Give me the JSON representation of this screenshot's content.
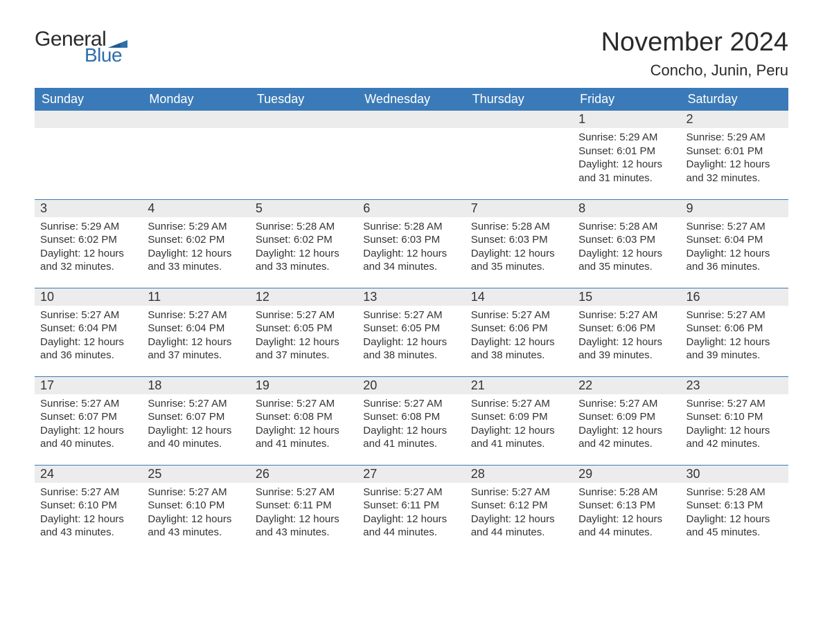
{
  "logo": {
    "general": "General",
    "blue": "Blue"
  },
  "title": "November 2024",
  "location": "Concho, Junin, Peru",
  "colors": {
    "header_bg": "#3b7ab8",
    "header_text": "#ffffff",
    "row_border": "#3b7ab8",
    "daynum_bg": "#ececec",
    "body_text": "#333333",
    "page_bg": "#ffffff",
    "logo_blue": "#2f6faa"
  },
  "typography": {
    "title_size_pt": 28,
    "location_size_pt": 16,
    "header_size_pt": 13,
    "daynum_size_pt": 13,
    "body_size_pt": 11,
    "font_family": "Arial"
  },
  "weekdays": [
    "Sunday",
    "Monday",
    "Tuesday",
    "Wednesday",
    "Thursday",
    "Friday",
    "Saturday"
  ],
  "weeks": [
    [
      null,
      null,
      null,
      null,
      null,
      {
        "n": "1",
        "sunrise": "Sunrise: 5:29 AM",
        "sunset": "Sunset: 6:01 PM",
        "day1": "Daylight: 12 hours",
        "day2": "and 31 minutes."
      },
      {
        "n": "2",
        "sunrise": "Sunrise: 5:29 AM",
        "sunset": "Sunset: 6:01 PM",
        "day1": "Daylight: 12 hours",
        "day2": "and 32 minutes."
      }
    ],
    [
      {
        "n": "3",
        "sunrise": "Sunrise: 5:29 AM",
        "sunset": "Sunset: 6:02 PM",
        "day1": "Daylight: 12 hours",
        "day2": "and 32 minutes."
      },
      {
        "n": "4",
        "sunrise": "Sunrise: 5:29 AM",
        "sunset": "Sunset: 6:02 PM",
        "day1": "Daylight: 12 hours",
        "day2": "and 33 minutes."
      },
      {
        "n": "5",
        "sunrise": "Sunrise: 5:28 AM",
        "sunset": "Sunset: 6:02 PM",
        "day1": "Daylight: 12 hours",
        "day2": "and 33 minutes."
      },
      {
        "n": "6",
        "sunrise": "Sunrise: 5:28 AM",
        "sunset": "Sunset: 6:03 PM",
        "day1": "Daylight: 12 hours",
        "day2": "and 34 minutes."
      },
      {
        "n": "7",
        "sunrise": "Sunrise: 5:28 AM",
        "sunset": "Sunset: 6:03 PM",
        "day1": "Daylight: 12 hours",
        "day2": "and 35 minutes."
      },
      {
        "n": "8",
        "sunrise": "Sunrise: 5:28 AM",
        "sunset": "Sunset: 6:03 PM",
        "day1": "Daylight: 12 hours",
        "day2": "and 35 minutes."
      },
      {
        "n": "9",
        "sunrise": "Sunrise: 5:27 AM",
        "sunset": "Sunset: 6:04 PM",
        "day1": "Daylight: 12 hours",
        "day2": "and 36 minutes."
      }
    ],
    [
      {
        "n": "10",
        "sunrise": "Sunrise: 5:27 AM",
        "sunset": "Sunset: 6:04 PM",
        "day1": "Daylight: 12 hours",
        "day2": "and 36 minutes."
      },
      {
        "n": "11",
        "sunrise": "Sunrise: 5:27 AM",
        "sunset": "Sunset: 6:04 PM",
        "day1": "Daylight: 12 hours",
        "day2": "and 37 minutes."
      },
      {
        "n": "12",
        "sunrise": "Sunrise: 5:27 AM",
        "sunset": "Sunset: 6:05 PM",
        "day1": "Daylight: 12 hours",
        "day2": "and 37 minutes."
      },
      {
        "n": "13",
        "sunrise": "Sunrise: 5:27 AM",
        "sunset": "Sunset: 6:05 PM",
        "day1": "Daylight: 12 hours",
        "day2": "and 38 minutes."
      },
      {
        "n": "14",
        "sunrise": "Sunrise: 5:27 AM",
        "sunset": "Sunset: 6:06 PM",
        "day1": "Daylight: 12 hours",
        "day2": "and 38 minutes."
      },
      {
        "n": "15",
        "sunrise": "Sunrise: 5:27 AM",
        "sunset": "Sunset: 6:06 PM",
        "day1": "Daylight: 12 hours",
        "day2": "and 39 minutes."
      },
      {
        "n": "16",
        "sunrise": "Sunrise: 5:27 AM",
        "sunset": "Sunset: 6:06 PM",
        "day1": "Daylight: 12 hours",
        "day2": "and 39 minutes."
      }
    ],
    [
      {
        "n": "17",
        "sunrise": "Sunrise: 5:27 AM",
        "sunset": "Sunset: 6:07 PM",
        "day1": "Daylight: 12 hours",
        "day2": "and 40 minutes."
      },
      {
        "n": "18",
        "sunrise": "Sunrise: 5:27 AM",
        "sunset": "Sunset: 6:07 PM",
        "day1": "Daylight: 12 hours",
        "day2": "and 40 minutes."
      },
      {
        "n": "19",
        "sunrise": "Sunrise: 5:27 AM",
        "sunset": "Sunset: 6:08 PM",
        "day1": "Daylight: 12 hours",
        "day2": "and 41 minutes."
      },
      {
        "n": "20",
        "sunrise": "Sunrise: 5:27 AM",
        "sunset": "Sunset: 6:08 PM",
        "day1": "Daylight: 12 hours",
        "day2": "and 41 minutes."
      },
      {
        "n": "21",
        "sunrise": "Sunrise: 5:27 AM",
        "sunset": "Sunset: 6:09 PM",
        "day1": "Daylight: 12 hours",
        "day2": "and 41 minutes."
      },
      {
        "n": "22",
        "sunrise": "Sunrise: 5:27 AM",
        "sunset": "Sunset: 6:09 PM",
        "day1": "Daylight: 12 hours",
        "day2": "and 42 minutes."
      },
      {
        "n": "23",
        "sunrise": "Sunrise: 5:27 AM",
        "sunset": "Sunset: 6:10 PM",
        "day1": "Daylight: 12 hours",
        "day2": "and 42 minutes."
      }
    ],
    [
      {
        "n": "24",
        "sunrise": "Sunrise: 5:27 AM",
        "sunset": "Sunset: 6:10 PM",
        "day1": "Daylight: 12 hours",
        "day2": "and 43 minutes."
      },
      {
        "n": "25",
        "sunrise": "Sunrise: 5:27 AM",
        "sunset": "Sunset: 6:10 PM",
        "day1": "Daylight: 12 hours",
        "day2": "and 43 minutes."
      },
      {
        "n": "26",
        "sunrise": "Sunrise: 5:27 AM",
        "sunset": "Sunset: 6:11 PM",
        "day1": "Daylight: 12 hours",
        "day2": "and 43 minutes."
      },
      {
        "n": "27",
        "sunrise": "Sunrise: 5:27 AM",
        "sunset": "Sunset: 6:11 PM",
        "day1": "Daylight: 12 hours",
        "day2": "and 44 minutes."
      },
      {
        "n": "28",
        "sunrise": "Sunrise: 5:27 AM",
        "sunset": "Sunset: 6:12 PM",
        "day1": "Daylight: 12 hours",
        "day2": "and 44 minutes."
      },
      {
        "n": "29",
        "sunrise": "Sunrise: 5:28 AM",
        "sunset": "Sunset: 6:13 PM",
        "day1": "Daylight: 12 hours",
        "day2": "and 44 minutes."
      },
      {
        "n": "30",
        "sunrise": "Sunrise: 5:28 AM",
        "sunset": "Sunset: 6:13 PM",
        "day1": "Daylight: 12 hours",
        "day2": "and 45 minutes."
      }
    ]
  ]
}
